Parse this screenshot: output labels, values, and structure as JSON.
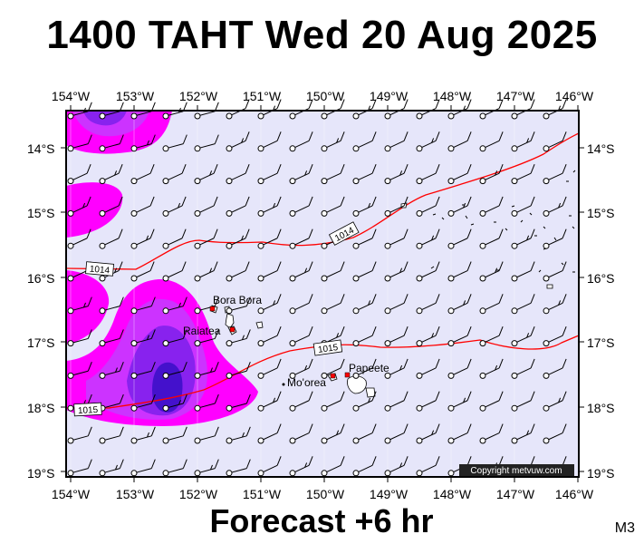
{
  "header": {
    "title": "1400 TAHT Wed 20 Aug 2025"
  },
  "footer": {
    "subtitle": "Forecast +6 hr",
    "model_code": "M3"
  },
  "map": {
    "lon_labels": [
      "154°W",
      "153°W",
      "152°W",
      "151°W",
      "150°W",
      "149°W",
      "148°W",
      "147°W",
      "146°W"
    ],
    "lat_labels": [
      "14°S",
      "15°S",
      "16°S",
      "17°S",
      "18°S",
      "19°S"
    ],
    "lon_range": [
      -154,
      -146
    ],
    "lat_range": [
      -13.4,
      -19.1
    ],
    "places": [
      {
        "name": "Bora Bora"
      },
      {
        "name": "Raiatea"
      },
      {
        "name": "Mo'orea"
      },
      {
        "name": "Papeete"
      }
    ],
    "isobar_labels": [
      "1014",
      "1014",
      "1015",
      "1015"
    ],
    "copyright": "Copyright metvuw.com",
    "colors": {
      "ocean": "#e6e6fa",
      "rain_light": "#ff00ff",
      "rain_medium": "#cc33ff",
      "rain_heavy": "#8822ee",
      "rain_extreme": "#4411cc",
      "isobar": "#ff0000",
      "land": "#ffffff",
      "city": "#ff0000"
    }
  }
}
